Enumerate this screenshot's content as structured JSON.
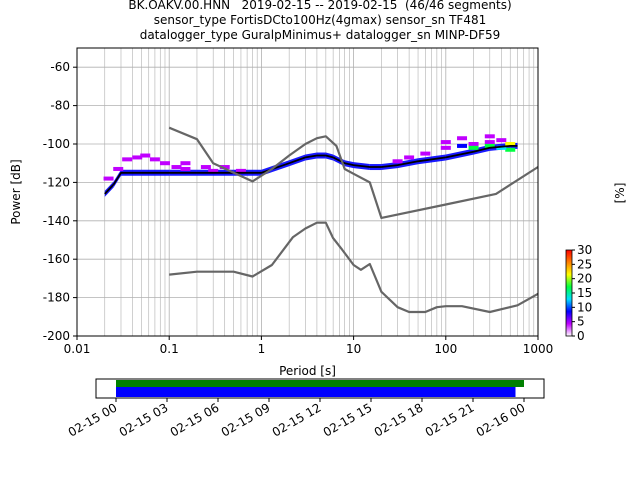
{
  "title_lines": [
    "BK.OAKV.00.HNN   2019-02-15 -- 2019-02-15  (46/46 segments)",
    "sensor_type FortisDCto100Hz(4gmax) sensor_sn TF481",
    "datalogger_type GuralpMinimus+ datalogger_sn MINP-DF59"
  ],
  "chart_data": [
    {
      "type": "heatmap",
      "title": "BK.OAKV.00.HNN   2019-02-15 -- 2019-02-15  (46/46 segments)",
      "xlabel": "Period [s]",
      "ylabel": "Power [dB]",
      "xscale": "log",
      "xlim": [
        0.01,
        1000
      ],
      "ylim": [
        -200,
        -50
      ],
      "xticks": [
        "0.01",
        "0.1",
        "1",
        "10",
        "100",
        "1000"
      ],
      "yticks": [
        "-60",
        "-80",
        "-100",
        "-120",
        "-140",
        "-160",
        "-180",
        "-200"
      ],
      "grid": true,
      "colorbar": {
        "label": "[%]",
        "range": [
          0,
          30
        ],
        "ticks": [
          "0",
          "5",
          "10",
          "15",
          "20",
          "25",
          "30"
        ],
        "colors": [
          "#ffffff",
          "#c000ff",
          "#0000ff",
          "#00e0ff",
          "#00ff40",
          "#ffff00",
          "#ff8000",
          "#ff0000"
        ]
      },
      "series": [
        {
          "name": "",
          "color": "#000000",
          "x": [
            0.02,
            0.025,
            0.03,
            0.05,
            0.1,
            0.2,
            0.5,
            1,
            2,
            3,
            4,
            5,
            6,
            8,
            10,
            15,
            20,
            30,
            50,
            100,
            200,
            300,
            500,
            600
          ],
          "y": [
            -126,
            -121,
            -115,
            -115,
            -115,
            -115,
            -115,
            -115,
            -110,
            -107,
            -106,
            -106,
            -107,
            -110,
            -111,
            -112,
            -112,
            -111,
            -109,
            -107,
            -104,
            -102,
            -101,
            -101
          ]
        },
        {
          "name": "",
          "color": "#666666",
          "x": [
            0.1,
            0.2,
            0.3,
            0.8,
            1.3,
            2,
            3,
            4,
            5,
            6.5,
            8,
            10,
            15,
            20,
            100,
            350,
            1000
          ],
          "y": [
            -91.5,
            -97.5,
            -110,
            -119.5,
            -113,
            -106,
            -100,
            -97,
            -96,
            -101,
            -113,
            -115.5,
            -120,
            -138.5,
            -131.5,
            -126,
            -112
          ]
        },
        {
          "name": "",
          "color": "#666666",
          "x": [
            0.1,
            0.2,
            0.5,
            0.8,
            1.3,
            2.2,
            3,
            4,
            5,
            6,
            7.5,
            10,
            12,
            15,
            20,
            30,
            40,
            60,
            80,
            100,
            150,
            300,
            600,
            1000
          ],
          "y": [
            -168,
            -166.5,
            -166.5,
            -169,
            -163,
            -148.5,
            -144,
            -141,
            -141,
            -149,
            -155,
            -163,
            -165.5,
            -162.5,
            -177,
            -185,
            -187.5,
            -187.5,
            -185,
            -184.5,
            -184.5,
            -187.5,
            -184,
            -178
          ]
        }
      ],
      "density": [
        {
          "x": 0.022,
          "y": -118,
          "pct": 2
        },
        {
          "x": 0.028,
          "y": -113,
          "pct": 2
        },
        {
          "x": 0.035,
          "y": -108,
          "pct": 2
        },
        {
          "x": 0.045,
          "y": -107,
          "pct": 2
        },
        {
          "x": 0.055,
          "y": -106,
          "pct": 3
        },
        {
          "x": 0.07,
          "y": -108,
          "pct": 3
        },
        {
          "x": 0.09,
          "y": -110,
          "pct": 3
        },
        {
          "x": 0.12,
          "y": -112,
          "pct": 3
        },
        {
          "x": 0.15,
          "y": -110,
          "pct": 2
        },
        {
          "x": 0.25,
          "y": -112,
          "pct": 3
        },
        {
          "x": 0.4,
          "y": -112,
          "pct": 3
        },
        {
          "x": 0.6,
          "y": -114,
          "pct": 3
        },
        {
          "x": 0.15,
          "y": -113,
          "pct": 5
        },
        {
          "x": 0.3,
          "y": -114,
          "pct": 6
        },
        {
          "x": 30,
          "y": -109,
          "pct": 3
        },
        {
          "x": 40,
          "y": -107,
          "pct": 3
        },
        {
          "x": 60,
          "y": -105,
          "pct": 3
        },
        {
          "x": 100,
          "y": -102,
          "pct": 5
        },
        {
          "x": 150,
          "y": -101,
          "pct": 7
        },
        {
          "x": 200,
          "y": -100,
          "pct": 6
        },
        {
          "x": 300,
          "y": -99,
          "pct": 4
        },
        {
          "x": 400,
          "y": -98,
          "pct": 3
        },
        {
          "x": 300,
          "y": -96,
          "pct": 2
        },
        {
          "x": 150,
          "y": -97,
          "pct": 4
        },
        {
          "x": 100,
          "y": -99,
          "pct": 6
        },
        {
          "x": 200,
          "y": -102,
          "pct": 16
        },
        {
          "x": 300,
          "y": -101,
          "pct": 18
        },
        {
          "x": 500,
          "y": -100,
          "pct": 20
        },
        {
          "x": 500,
          "y": -103,
          "pct": 16
        },
        {
          "x": 400,
          "y": -102,
          "pct": 14
        }
      ]
    },
    {
      "type": "bar",
      "title": "",
      "xlabel": "",
      "xlim": [
        "2019-02-15 00:00",
        "2019-02-16 00:00"
      ],
      "xticks": [
        "02-15 00",
        "02-15 03",
        "02-15 06",
        "02-15 09",
        "02-15 12",
        "02-15 15",
        "02-15 18",
        "02-15 21",
        "02-16 00"
      ],
      "series": [
        {
          "name": "",
          "color": "#008000",
          "start": "2019-02-15 00:00",
          "end": "2019-02-16 00:00"
        },
        {
          "name": "",
          "color": "#0000ff",
          "start": "2019-02-15 00:00",
          "end": "2019-02-15 23:30"
        }
      ]
    }
  ]
}
